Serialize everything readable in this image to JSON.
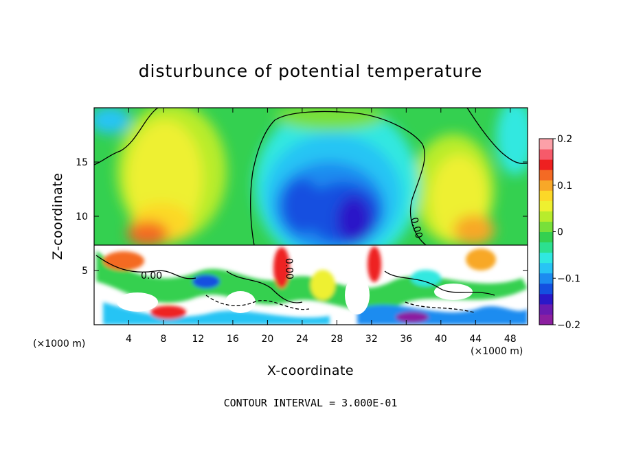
{
  "chart_data": {
    "type": "heatmap",
    "title": "disturbunce of potential temperature",
    "xlabel": "X-coordinate",
    "ylabel": "Z-coordinate",
    "x_unit_left": "(×1000 m)",
    "x_unit_right": "(×1000 m)",
    "xlim": [
      0,
      50
    ],
    "ylim": [
      0,
      20
    ],
    "x_ticks": [
      4,
      8,
      12,
      16,
      20,
      24,
      28,
      32,
      36,
      40,
      44,
      48
    ],
    "y_ticks": [
      5,
      10,
      15
    ],
    "colorbar": {
      "range": [
        -0.2,
        0.2
      ],
      "ticks": [
        {
          "value": 0.2,
          "label": "0.2"
        },
        {
          "value": 0.1,
          "label": "0.1"
        },
        {
          "value": 0,
          "label": "0"
        },
        {
          "value": -0.1,
          "label": "−0.1"
        },
        {
          "value": -0.2,
          "label": "−0.2"
        }
      ],
      "colors": [
        "#8c1fa0",
        "#6a1bb0",
        "#2a18c8",
        "#1450e0",
        "#1c8cf0",
        "#28c4f4",
        "#30e8e0",
        "#2ce090",
        "#34d050",
        "#78e03a",
        "#b8ec2c",
        "#eef030",
        "#fcd828",
        "#f8a828",
        "#f46a24",
        "#ee2020",
        "#f65a6a",
        "#fca0a8"
      ]
    },
    "contour_interval_text": "CONTOUR INTERVAL = 3.000E-01",
    "contour_labels": [
      "0.00",
      "0.00",
      "0.00"
    ],
    "field_regions": [
      {
        "region": "upper layer, x 0-16",
        "z_range": [
          7.3,
          20
        ],
        "value": 0.05
      },
      {
        "region": "upper layer, x 18-38 (cold anomaly)",
        "z_range": [
          7.3,
          20
        ],
        "value": -0.15
      },
      {
        "region": "upper layer, x 40-50",
        "z_range": [
          7.3,
          20
        ],
        "value": 0.05
      },
      {
        "region": "lower layer (turbulent, beyond scale)",
        "z_range": [
          0,
          7.3
        ],
        "value": "mixed"
      }
    ]
  }
}
